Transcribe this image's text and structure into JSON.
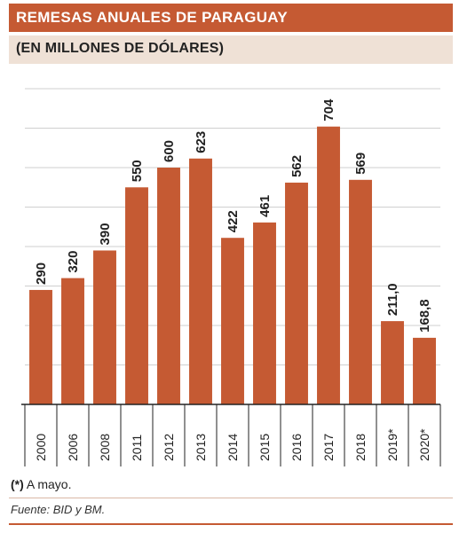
{
  "header": {
    "title": "REMESAS ANUALES DE PARAGUAY",
    "subtitle": "(EN MILLONES DE DÓLARES)"
  },
  "chart_data": {
    "type": "bar",
    "categories": [
      "2000",
      "2006",
      "2008",
      "2011",
      "2012",
      "2013",
      "2014",
      "2015",
      "2016",
      "2017",
      "2018",
      "2019*",
      "2020*"
    ],
    "values": [
      290,
      320,
      390,
      550,
      600,
      623,
      422,
      461,
      562,
      704,
      569,
      211.0,
      168.8
    ],
    "value_labels": [
      "290",
      "320",
      "390",
      "550",
      "600",
      "623",
      "422",
      "461",
      "562",
      "704",
      "569",
      "211,0",
      "168,8"
    ],
    "title": "REMESAS ANUALES DE PARAGUAY",
    "subtitle": "(EN MILLONES DE DÓLARES)",
    "xlabel": "",
    "ylabel": "",
    "ylim": [
      0,
      800
    ],
    "grid": true,
    "legend": "none",
    "bar_color": "#c55a33",
    "grid_color": "#cfcfcf"
  },
  "footnote": {
    "marker": "(*)",
    "text": " A mayo."
  },
  "source": "Fuente: BID y BM."
}
